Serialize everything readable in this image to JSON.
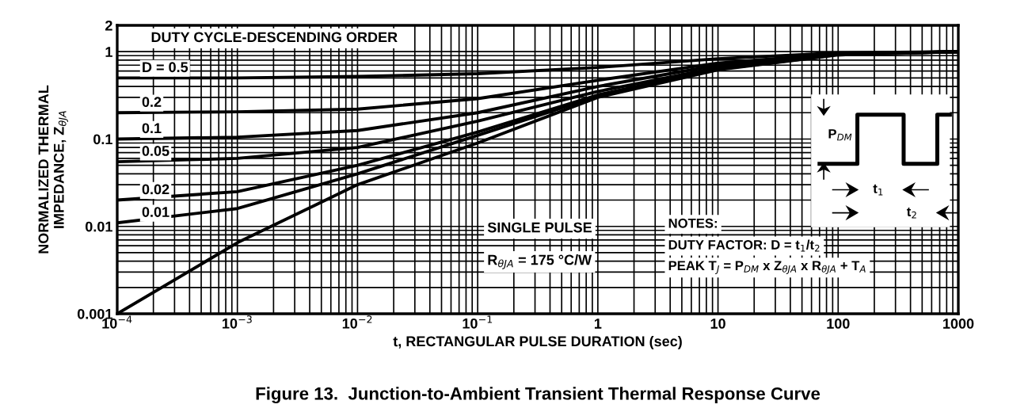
{
  "chart_data": {
    "type": "line",
    "title": "Figure 13.  Junction-to-Ambient Transient Thermal Response Curve",
    "xlabel": "t, RECTANGULAR PULSE DURATION (sec)",
    "ylabel": "NORMALIZED THERMAL\nIMPEDANCE, Z$_{θJA}$",
    "x": [
      0.0001,
      0.001,
      0.01,
      0.1,
      1,
      10,
      100,
      1000
    ],
    "series": [
      {
        "name": "D = 0.5",
        "color": "#000000",
        "values": [
          0.5,
          0.5,
          0.52,
          0.56,
          0.66,
          0.83,
          0.97,
          1.0
        ]
      },
      {
        "name": "0.2",
        "color": "#000000",
        "values": [
          0.2,
          0.205,
          0.22,
          0.29,
          0.47,
          0.74,
          0.95,
          1.0
        ]
      },
      {
        "name": "0.1",
        "color": "#000000",
        "values": [
          0.1,
          0.105,
          0.125,
          0.2,
          0.4,
          0.7,
          0.94,
          1.0
        ]
      },
      {
        "name": "0.05",
        "color": "#000000",
        "values": [
          0.055,
          0.06,
          0.08,
          0.16,
          0.35,
          0.66,
          0.93,
          1.0
        ]
      },
      {
        "name": "0.02",
        "color": "#000000",
        "values": [
          0.02,
          0.025,
          0.05,
          0.12,
          0.32,
          0.64,
          0.93,
          1.0
        ]
      },
      {
        "name": "0.01",
        "color": "#000000",
        "values": [
          0.011,
          0.016,
          0.04,
          0.11,
          0.31,
          0.63,
          0.92,
          1.0
        ]
      },
      {
        "color": "#000000",
        "values": [
          0.001,
          0.0065,
          0.03,
          0.09,
          0.3,
          0.62,
          0.92,
          1.0
        ]
      }
    ],
    "annotations": [
      "DUTY CYCLE-DESCENDING ORDER",
      "SINGLE PULSE",
      "R$_{θJA}$ = 175 °C/W",
      "NOTES:",
      "DUTY FACTOR: D = t$_{1}$/t$_{2}$",
      "PEAK T$_{J}$ = P$_{DM}$ x Z$_{θJA}$ x R$_{θJA}$ + T$_{A}$",
      "P$_{DM}$",
      "t$_{1}$",
      "t$_{2}$"
    ],
    "xlim": [
      0.0001,
      1000
    ],
    "xticks": [
      {
        "value": 0.0001,
        "label": "10$^{−4}$"
      },
      {
        "value": 0.001,
        "label": "10$^{−3}$"
      },
      {
        "value": 0.01,
        "label": "10$^{−2}$"
      },
      {
        "value": 0.1,
        "label": "10$^{−1}$"
      },
      1,
      10,
      100,
      1000
    ],
    "ylim": [
      0.001,
      2
    ],
    "yticks": [
      0.001,
      0.01,
      0.1,
      1,
      2
    ],
    "log": "xy",
    "grid": true,
    "marker": "none",
    "line_style": "solid"
  }
}
